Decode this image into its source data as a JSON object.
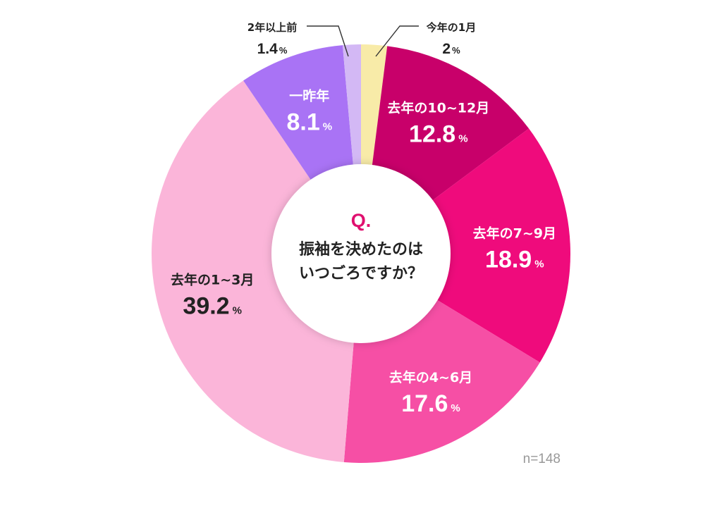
{
  "chart_data": {
    "type": "pie",
    "style": "donut",
    "start_angle_deg": 0,
    "direction": "clockwise",
    "center_text": {
      "q_label": "Q.",
      "line1": "振袖を決めたのは",
      "line2": "いつごろですか？"
    },
    "sample_size": "n=148",
    "percent_sign": "%",
    "slices": [
      {
        "label": "今年の1月",
        "value": 2,
        "display": "2",
        "color": "#f8eba8",
        "text_color": "#222222",
        "label_position": "outside"
      },
      {
        "label": "去年の10~12月",
        "value": 12.8,
        "display": "12.8",
        "color": "#c8006a",
        "text_color": "#ffffff",
        "label_position": "inside"
      },
      {
        "label": "去年の7~9月",
        "value": 18.9,
        "display": "18.9",
        "color": "#ef0b7c",
        "text_color": "#ffffff",
        "label_position": "inside"
      },
      {
        "label": "去年の4~6月",
        "value": 17.6,
        "display": "17.6",
        "color": "#f64fa5",
        "text_color": "#ffffff",
        "label_position": "inside"
      },
      {
        "label": "去年の1~3月",
        "value": 39.2,
        "display": "39.2",
        "color": "#fbb5d9",
        "text_color": "#222222",
        "label_position": "inside"
      },
      {
        "label": "一昨年",
        "value": 8.1,
        "display": "8.1",
        "color": "#a973f5",
        "text_color": "#ffffff",
        "label_position": "inside"
      },
      {
        "label": "2年以上前",
        "value": 1.4,
        "display": "1.4",
        "color": "#d3b8f5",
        "text_color": "#222222",
        "label_position": "outside"
      }
    ]
  },
  "colors": {
    "center_fill": "#ffffff",
    "q_color": "#e0106f",
    "center_text": "#222222",
    "leader_line": "#333333",
    "footnote": "#999999"
  }
}
